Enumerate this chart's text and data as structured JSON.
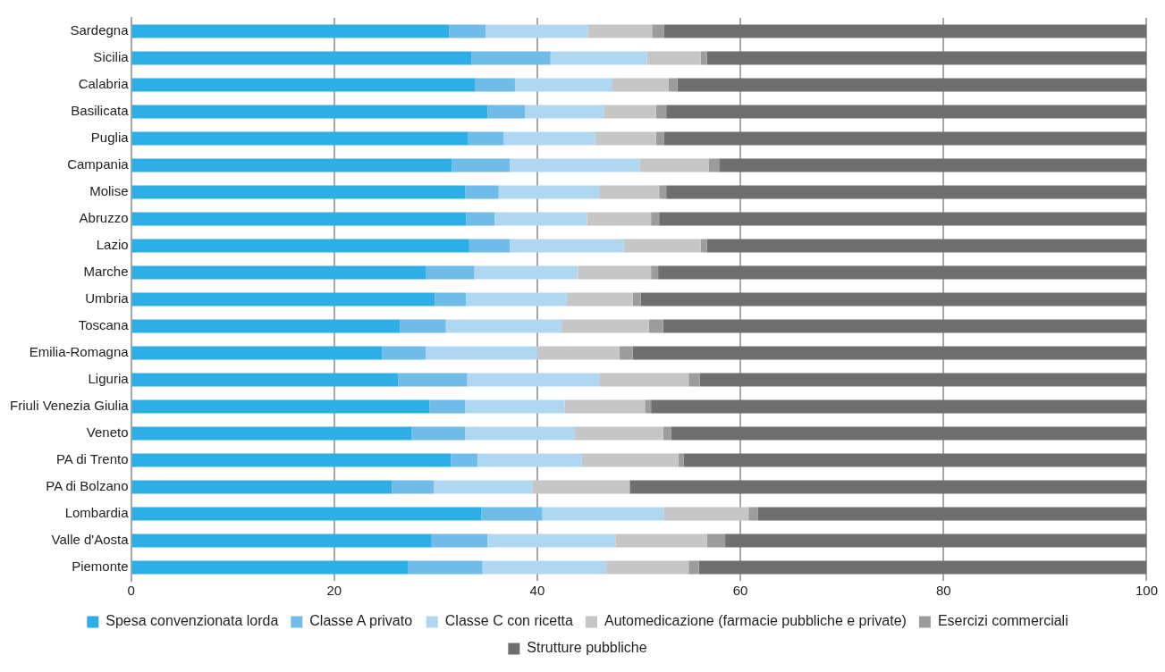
{
  "chart_data": {
    "type": "bar",
    "orientation": "horizontal",
    "stacked": true,
    "categories": [
      "Sardegna",
      "Sicilia",
      "Calabria",
      "Basilicata",
      "Puglia",
      "Campania",
      "Molise",
      "Abruzzo",
      "Lazio",
      "Marche",
      "Umbria",
      "Toscana",
      "Emilia-Romagna",
      "Liguria",
      "Friuli Venezia Giulia",
      "Veneto",
      "PA di Trento",
      "PA di Bolzano",
      "Lombardia",
      "Valle d'Aosta",
      "Piemonte"
    ],
    "series": [
      {
        "name": "Spesa convenzionata lorda",
        "color": "#2eaee6",
        "values": [
          31.3,
          33.5,
          33.9,
          35.1,
          33.2,
          31.6,
          32.9,
          33.0,
          33.3,
          29.0,
          29.9,
          26.5,
          24.7,
          26.3,
          29.4,
          27.6,
          31.5,
          25.7,
          34.5,
          29.6,
          27.3
        ]
      },
      {
        "name": "Classe A privato",
        "color": "#6fbce8",
        "values": [
          3.6,
          7.8,
          3.9,
          3.7,
          3.5,
          5.7,
          3.3,
          2.8,
          4.0,
          4.8,
          3.1,
          4.5,
          4.3,
          6.8,
          3.5,
          5.3,
          2.6,
          4.1,
          6.0,
          5.5,
          7.3
        ]
      },
      {
        "name": "Classe C con ricetta",
        "color": "#b0d7f2",
        "values": [
          10.1,
          9.5,
          9.6,
          7.8,
          9.0,
          12.8,
          9.9,
          9.1,
          11.2,
          10.2,
          9.9,
          11.4,
          11.0,
          13.0,
          9.8,
          10.8,
          10.3,
          9.7,
          12.0,
          12.6,
          12.2
        ]
      },
      {
        "name": "Automedicazione (farmacie pubbliche e private)",
        "color": "#c6c6c6",
        "values": [
          6.3,
          5.3,
          5.5,
          5.1,
          6.0,
          6.8,
          5.9,
          6.3,
          7.6,
          7.2,
          6.5,
          8.6,
          8.1,
          8.8,
          7.9,
          8.7,
          9.5,
          9.6,
          8.3,
          9.0,
          8.1
        ]
      },
      {
        "name": "Esercizi commerciali",
        "color": "#9c9c9c",
        "values": [
          1.2,
          0.6,
          0.9,
          1.0,
          0.8,
          1.0,
          0.7,
          0.8,
          0.6,
          0.7,
          0.8,
          1.4,
          1.3,
          1.1,
          0.6,
          0.8,
          0.5,
          0.0,
          0.9,
          1.8,
          1.0
        ]
      },
      {
        "name": "Strutture pubbliche",
        "color": "#6f6f6f",
        "values": [
          47.5,
          43.3,
          46.2,
          47.3,
          47.5,
          42.1,
          47.3,
          48.0,
          43.3,
          48.1,
          49.8,
          47.6,
          50.6,
          44.0,
          48.8,
          46.8,
          45.6,
          50.9,
          38.3,
          41.5,
          44.1
        ]
      }
    ],
    "xlim": [
      0,
      100
    ],
    "xticks": [
      0,
      20,
      40,
      60,
      80,
      100
    ],
    "grid": "x",
    "legend": "bottom"
  }
}
